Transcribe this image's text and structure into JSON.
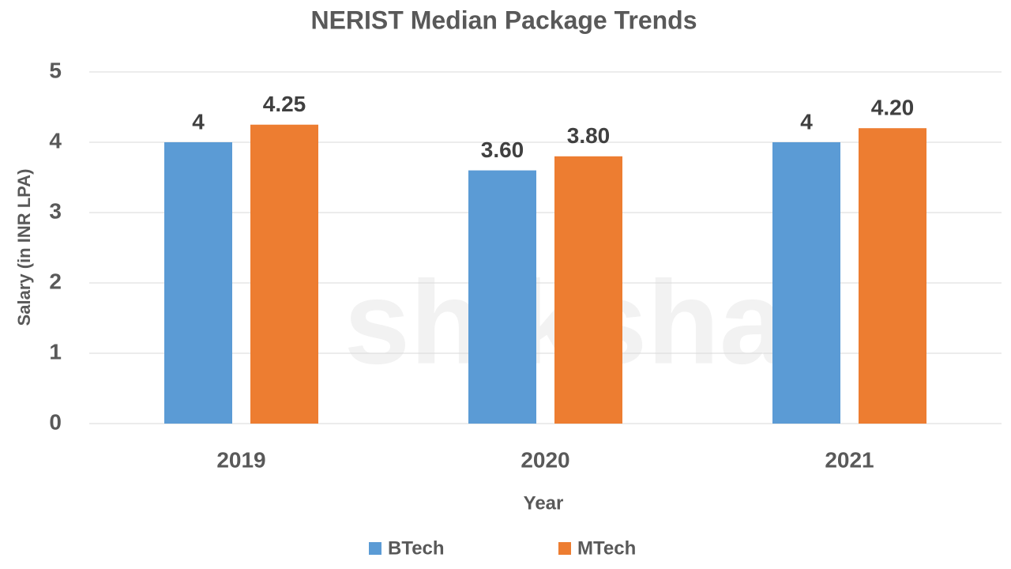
{
  "chart_data": {
    "type": "bar",
    "title": "NERIST Median Package Trends",
    "watermark": "shiksha",
    "x_label": "Year",
    "y_label": "Salary (in INR LPA)",
    "categories": [
      "2019",
      "2020",
      "2021"
    ],
    "series": [
      {
        "name": "BTech",
        "color": "#5b9bd5",
        "values": [
          4,
          3.6,
          4
        ],
        "value_labels": [
          "4",
          "3.60",
          "4"
        ]
      },
      {
        "name": "MTech",
        "color": "#ed7d31",
        "values": [
          4.25,
          3.8,
          4.2
        ],
        "value_labels": [
          "4.25",
          "3.80",
          "4.20"
        ]
      }
    ],
    "ylim": [
      0,
      5
    ],
    "yticks": [
      0,
      1,
      2,
      3,
      4,
      5
    ],
    "grid": true,
    "legend": "bottom"
  }
}
